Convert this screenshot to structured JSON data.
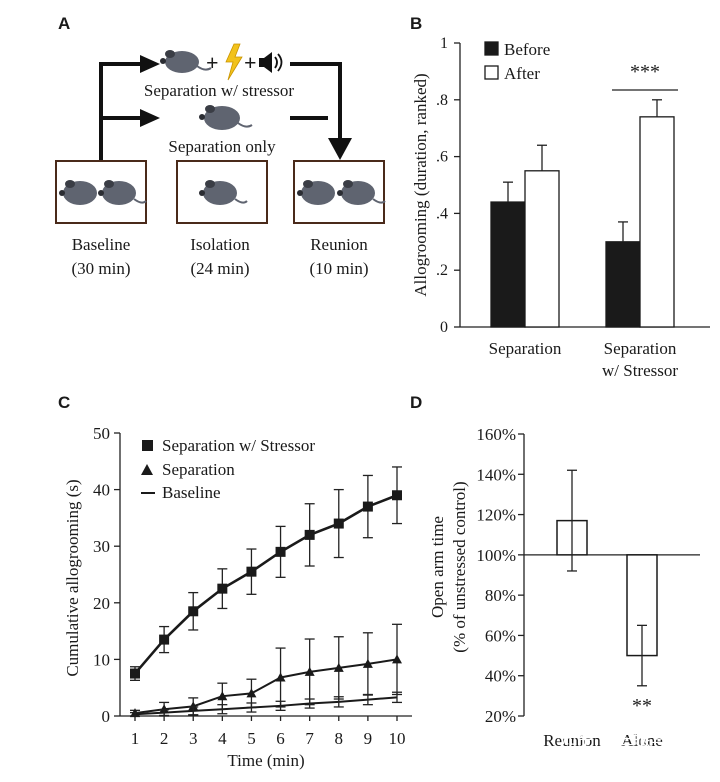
{
  "panelA": {
    "letter": "A",
    "plus1": "+",
    "plus2": "+",
    "label_stressor": "Separation w/ stressor",
    "label_sep_only": "Separation only",
    "stages": [
      {
        "name": "Baseline",
        "duration": "(30 min)"
      },
      {
        "name": "Isolation",
        "duration": "(24 min)"
      },
      {
        "name": "Reunion",
        "duration": "(10 min)"
      }
    ]
  },
  "chart_data": [
    {
      "panel": "B",
      "type": "bar",
      "ylabel": "Allogrooming (duration, ranked)",
      "ylim": [
        0,
        1
      ],
      "ytick_labels": [
        "0",
        ".2",
        ".4",
        ".6",
        ".8",
        "1"
      ],
      "categories": [
        "Separation",
        "Separation w/ Stressor"
      ],
      "category_lines": [
        [
          "Separation"
        ],
        [
          "Separation",
          "w/ Stressor"
        ]
      ],
      "series": [
        {
          "name": "Before",
          "color": "#1a1a1a",
          "values": [
            0.44,
            0.3
          ],
          "errors": [
            0.07,
            0.07
          ]
        },
        {
          "name": "After",
          "color": "#ffffff",
          "values": [
            0.55,
            0.74
          ],
          "errors": [
            0.09,
            0.06
          ]
        }
      ],
      "significance": "***"
    },
    {
      "panel": "C",
      "type": "line",
      "xlabel": "Time (min)",
      "ylabel": "Cumulative allogrooming (s)",
      "x": [
        1,
        2,
        3,
        4,
        5,
        6,
        7,
        8,
        9,
        10
      ],
      "ylim": [
        0,
        50
      ],
      "yticks": [
        0,
        10,
        20,
        30,
        40,
        50
      ],
      "series": [
        {
          "name": "Separation w/ Stressor",
          "marker": "square",
          "values": [
            7.5,
            13.5,
            18.5,
            22.5,
            25.5,
            29,
            32,
            34,
            37,
            39
          ],
          "errors": [
            1.2,
            2.3,
            3.3,
            3.5,
            4,
            4.5,
            5.5,
            6,
            5.5,
            5
          ]
        },
        {
          "name": "Separation",
          "marker": "triangle",
          "values": [
            0.5,
            1.2,
            1.7,
            3.5,
            4,
            6.8,
            7.8,
            8.5,
            9.2,
            10
          ],
          "errors": [
            0.5,
            1.2,
            1.5,
            2.3,
            2.5,
            5.2,
            5.8,
            5.5,
            5.5,
            6.2
          ]
        },
        {
          "name": "Baseline",
          "marker": "none",
          "values": [
            0.3,
            0.6,
            0.9,
            1.2,
            1.5,
            1.8,
            2.2,
            2.5,
            2.9,
            3.3
          ],
          "errors": [
            0.3,
            0.5,
            0.7,
            0.8,
            0.8,
            0.8,
            0.8,
            0.9,
            0.9,
            0.9
          ]
        }
      ]
    },
    {
      "panel": "D",
      "type": "bar",
      "ylabel": "Open arm time (% of unstressed control)",
      "ylabel_lines": [
        "Open arm time",
        "(% of unstressed control)"
      ],
      "ylim": [
        20,
        160
      ],
      "yticks": [
        20,
        40,
        60,
        80,
        100,
        120,
        140,
        160
      ],
      "ytick_labels": [
        "20%",
        "40%",
        "60%",
        "80%",
        "100%",
        "120%",
        "140%",
        "160%"
      ],
      "baseline": 100,
      "categories": [
        "Reunion",
        "Alone"
      ],
      "values": [
        117,
        50
      ],
      "errors": [
        25,
        15
      ],
      "significance": "**"
    }
  ],
  "watermark": "知乎 @三眼乌鸦"
}
